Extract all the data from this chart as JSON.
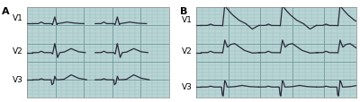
{
  "panel_A_label": "A",
  "panel_B_label": "B",
  "lead_labels": [
    "V1",
    "V2",
    "V3"
  ],
  "bg_color": "#b8d4d4",
  "grid_minor_color": "#98bcbc",
  "grid_major_color": "#78a0a0",
  "ecg_color": "#2a2a3a",
  "fig_bg": "#ffffff",
  "outer_bg": "#ffffff",
  "label_fontsize": 6.5,
  "panel_label_fontsize": 8
}
